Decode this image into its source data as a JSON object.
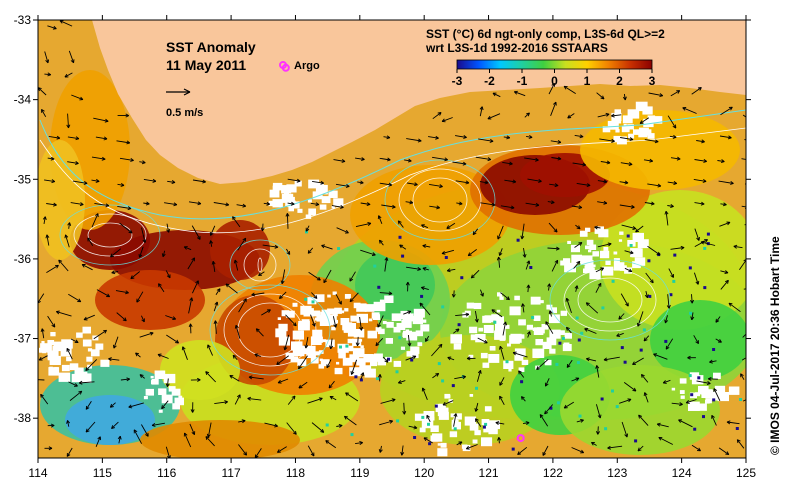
{
  "map": {
    "title": "SST Anomaly",
    "date": "11 May 2011",
    "argo_label": "Argo",
    "scale_label": "0.5 m/s",
    "product_line1": "SST (°C) 6d ngt-only comp, L3S-6d QL>=2",
    "product_line2": "wrt L3S-1d 1992-2016 SSTAARS",
    "credit": "©  IMOS 04-Jul-2017 20:36 Hobart Time",
    "colors": {
      "land": "#f9c69b",
      "no_data": "#ffffff",
      "argo_marker": "#ff33ff",
      "contour": "#ffffff",
      "contour_alt": "#66e0e0",
      "vector": "#000000"
    }
  },
  "axes": {
    "x_ticks": [
      "114",
      "115",
      "116",
      "117",
      "118",
      "119",
      "120",
      "121",
      "122",
      "123",
      "124",
      "125"
    ],
    "y_ticks": [
      "-33",
      "-34",
      "-35",
      "-36",
      "-37",
      "-38"
    ]
  },
  "colorbar": {
    "ticks": [
      "-3",
      "-2",
      "-1",
      "0",
      "1",
      "2",
      "3"
    ],
    "range": [
      -3,
      3
    ],
    "colors": [
      "#1a0a8c",
      "#0055ff",
      "#00c8ff",
      "#20d0a0",
      "#40d040",
      "#c8e020",
      "#ffd000",
      "#f08000",
      "#c83000",
      "#8b0000"
    ]
  },
  "chart_data": {
    "type": "heatmap",
    "title": "SST Anomaly",
    "subtitle": "11 May 2011",
    "xlim": [
      114,
      125
    ],
    "ylim": [
      -38.5,
      -33
    ],
    "colorbar_range": [
      -3,
      3
    ],
    "argo_floats": [
      {
        "lon": 117.85,
        "lat": -33.6
      },
      {
        "lon": 121.5,
        "lat": -38.25
      }
    ]
  }
}
